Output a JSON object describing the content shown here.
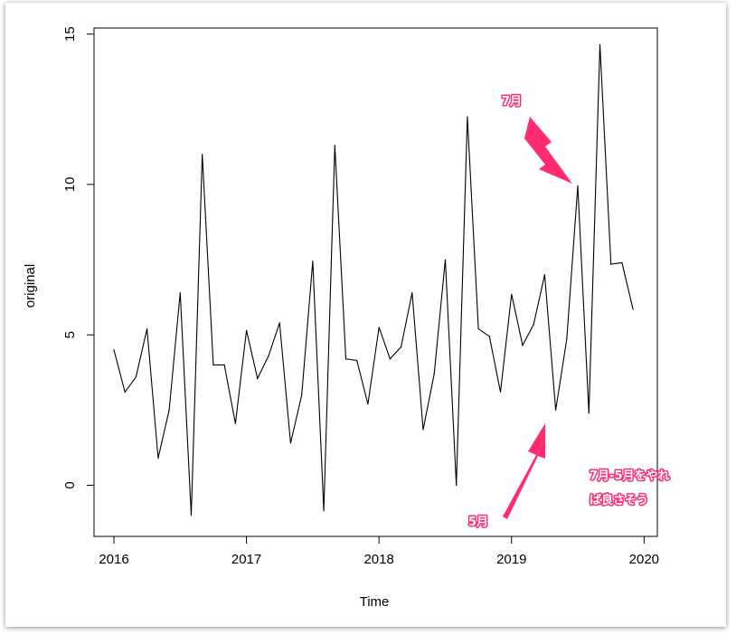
{
  "chart_data": {
    "type": "line",
    "title": "",
    "xlabel": "Time",
    "ylabel": "original",
    "xlim": [
      2015.85,
      2020.1
    ],
    "ylim": [
      -1.7,
      15.2
    ],
    "xticks": [
      2016,
      2017,
      2018,
      2019,
      2020
    ],
    "yticks": [
      0,
      5,
      10,
      15
    ],
    "x_start": 2016,
    "x_step": 0.0833333,
    "values": [
      4.5,
      3.1,
      3.6,
      5.2,
      0.9,
      2.5,
      6.4,
      -1.0,
      11.0,
      4.0,
      4.0,
      2.05,
      5.15,
      3.55,
      4.3,
      5.4,
      1.4,
      3.0,
      7.45,
      -0.85,
      11.3,
      4.2,
      4.15,
      2.7,
      5.25,
      4.2,
      4.6,
      6.4,
      1.85,
      3.7,
      7.5,
      0.0,
      12.25,
      5.2,
      4.95,
      3.1,
      6.35,
      4.65,
      5.35,
      7.0,
      2.5,
      4.85,
      9.95,
      2.4,
      14.65,
      7.35,
      7.4,
      5.85
    ],
    "grid": false,
    "legend": "none"
  },
  "annotations": {
    "july": "7月",
    "may": "5月",
    "note_line1": "7月-5月をやれ",
    "note_line2": "ば良さそう",
    "arrow_color": "#ff2d6f"
  }
}
